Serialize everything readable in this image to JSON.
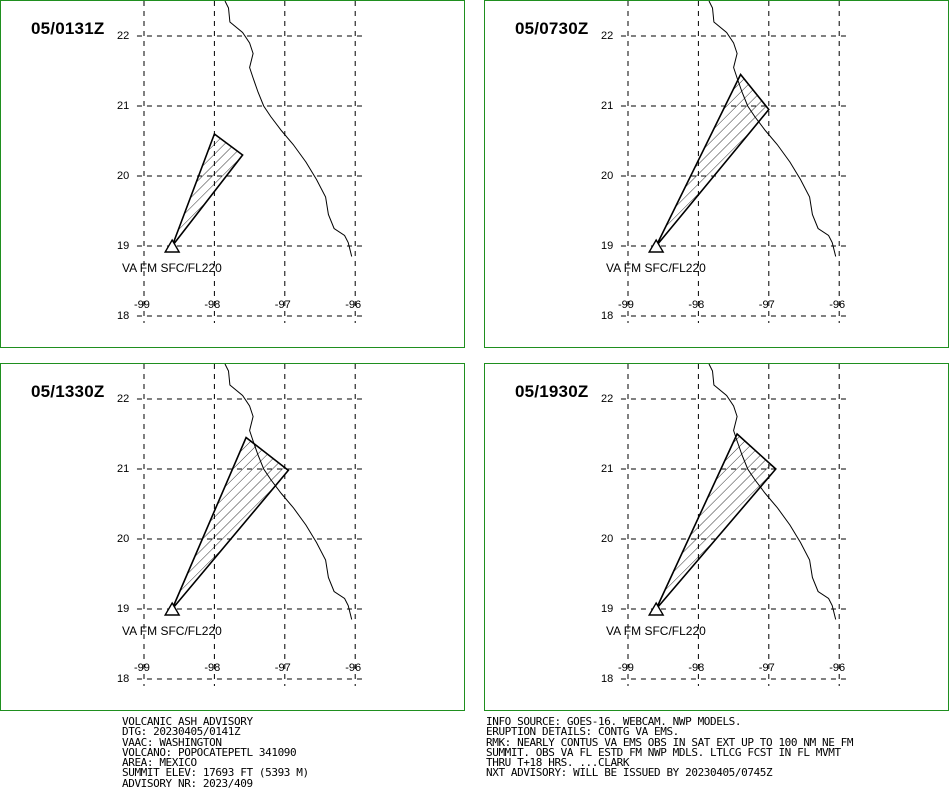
{
  "panels": [
    {
      "time": "05/0131Z",
      "label": "VA FM SFC/FL220",
      "polygon": [
        [
          -98.6,
          19.0
        ],
        [
          -98.0,
          20.6
        ],
        [
          -97.6,
          20.3
        ],
        [
          -98.6,
          19.0
        ]
      ]
    },
    {
      "time": "05/0730Z",
      "label": "VA FM SFC/FL220",
      "polygon": [
        [
          -98.6,
          19.0
        ],
        [
          -97.4,
          21.45
        ],
        [
          -97.0,
          20.95
        ],
        [
          -98.6,
          19.0
        ]
      ]
    },
    {
      "time": "05/1330Z",
      "label": "VA FM SFC/FL220",
      "polygon": [
        [
          -98.6,
          19.0
        ],
        [
          -97.55,
          21.45
        ],
        [
          -96.95,
          20.98
        ],
        [
          -98.6,
          19.0
        ]
      ]
    },
    {
      "time": "05/1930Z",
      "label": "VA FM SFC/FL220",
      "polygon": [
        [
          -98.6,
          19.0
        ],
        [
          -97.45,
          21.5
        ],
        [
          -96.9,
          21.0
        ],
        [
          -98.6,
          19.0
        ]
      ]
    }
  ],
  "axes": {
    "lon_ticks": [
      "-99",
      "-98",
      "-97",
      "-96"
    ],
    "lat_ticks": [
      "22",
      "21",
      "20",
      "19",
      "18"
    ],
    "lon_values": [
      -99,
      -98,
      -97,
      -96
    ],
    "lat_values": [
      22,
      21,
      20,
      19,
      18
    ],
    "lon_range": [
      -99.1,
      -95.9
    ],
    "lat_range": [
      17.9,
      22.5
    ]
  },
  "volcano": {
    "lon": -98.6,
    "lat": 19.0,
    "icon": "volcano-triangle-icon"
  },
  "coastline": [
    [
      -97.85,
      22.5
    ],
    [
      -97.8,
      22.4
    ],
    [
      -97.78,
      22.2
    ],
    [
      -97.6,
      22.05
    ],
    [
      -97.5,
      21.9
    ],
    [
      -97.45,
      21.75
    ],
    [
      -97.5,
      21.55
    ],
    [
      -97.45,
      21.4
    ],
    [
      -97.38,
      21.2
    ],
    [
      -97.3,
      21.0
    ],
    [
      -97.2,
      20.85
    ],
    [
      -97.05,
      20.65
    ],
    [
      -96.88,
      20.45
    ],
    [
      -96.7,
      20.2
    ],
    [
      -96.55,
      19.95
    ],
    [
      -96.42,
      19.7
    ],
    [
      -96.38,
      19.45
    ],
    [
      -96.3,
      19.25
    ],
    [
      -96.15,
      19.15
    ],
    [
      -96.1,
      19.05
    ],
    [
      -96.05,
      18.85
    ]
  ],
  "colors": {
    "border": "#1f8f1f",
    "grid": "#000000",
    "polygon": "#000000"
  },
  "left_text": [
    "VOLCANIC ASH ADVISORY",
    "DTG: 20230405/0141Z",
    "VAAC: WASHINGTON",
    "VOLCANO: POPOCATEPETL 341090",
    "AREA: MEXICO",
    "SUMMIT ELEV: 17693 FT (5393 M)",
    "ADVISORY NR: 2023/409"
  ],
  "right_text": [
    "INFO SOURCE: GOES-16. WEBCAM. NWP MODELS.",
    "ERUPTION DETAILS: CONTG VA EMS.",
    "RMK: NEARLY CONTUS VA EMS OBS IN SAT EXT UP TO 100 NM NE FM",
    "SUMMIT. OBS VA FL ESTD FM NWP MDLS. LTLCG FCST IN FL MVMT",
    "THRU T+18 HRS. ...CLARK",
    "NXT ADVISORY: WILL BE ISSUED BY 20230405/0745Z"
  ]
}
